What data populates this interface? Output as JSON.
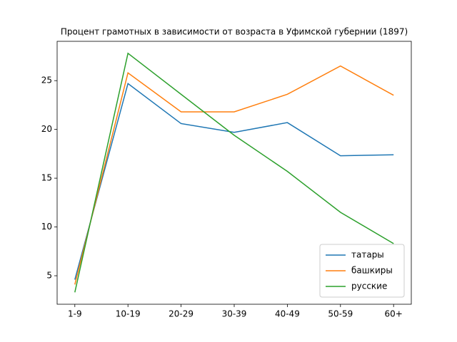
{
  "chart_data": {
    "type": "line",
    "title": "Процент грамотных в зависимости от возраста в Уфимской губернии (1897)",
    "categories": [
      "1-9",
      "10-19",
      "20-29",
      "30-39",
      "40-49",
      "50-59",
      "60+"
    ],
    "series": [
      {
        "name": "татары",
        "color": "#1f77b4",
        "values": [
          4.6,
          24.7,
          20.6,
          19.7,
          20.7,
          17.3,
          17.4
        ]
      },
      {
        "name": "башкиры",
        "color": "#ff7f0e",
        "values": [
          4.1,
          25.8,
          21.8,
          21.8,
          23.6,
          26.5,
          23.5
        ]
      },
      {
        "name": "русские",
        "color": "#2ca02c",
        "values": [
          3.3,
          27.8,
          23.6,
          19.4,
          15.7,
          11.5,
          8.3
        ]
      }
    ],
    "ylim": [
      2.08,
      29.03
    ],
    "yticks": [
      5,
      10,
      15,
      20,
      25
    ],
    "legend": "lower right"
  }
}
